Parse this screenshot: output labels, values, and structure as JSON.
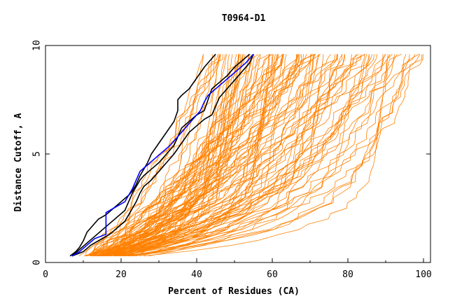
{
  "chart_data": {
    "type": "line",
    "title": "T0964-D1",
    "xlabel": "Percent of Residues (CA)",
    "ylabel": "Distance Cutoff, A",
    "xlim": [
      0,
      100
    ],
    "ylim": [
      0,
      10
    ],
    "x_ticks": [
      "0",
      "20",
      "40",
      "60",
      "80",
      "100"
    ],
    "y_ticks": [
      "0",
      "5",
      "10"
    ],
    "grid": false,
    "legend": "none",
    "colors": {
      "models": "#ff8000",
      "highlight_black": "#000000",
      "highlight_blue": "#0000ff",
      "frame": "#000000"
    },
    "series": [
      {
        "color": "#000000",
        "points": [
          [
            6.5,
            0.3
          ],
          [
            8,
            0.5
          ],
          [
            9,
            0.7
          ],
          [
            10,
            1.0
          ],
          [
            11,
            1.4
          ],
          [
            12,
            1.6
          ],
          [
            14,
            2.0
          ],
          [
            16,
            2.2
          ],
          [
            18,
            2.5
          ],
          [
            20,
            2.8
          ],
          [
            22,
            3.1
          ],
          [
            23,
            3.3
          ],
          [
            24,
            3.6
          ],
          [
            25,
            4.0
          ],
          [
            26,
            4.3
          ],
          [
            27,
            4.6
          ],
          [
            28,
            5.0
          ],
          [
            30,
            5.5
          ],
          [
            32,
            6.0
          ],
          [
            34,
            6.5
          ],
          [
            35,
            7.0
          ],
          [
            35,
            7.5
          ],
          [
            36,
            7.7
          ],
          [
            38,
            8.0
          ],
          [
            40,
            8.5
          ],
          [
            42,
            9.0
          ],
          [
            45,
            9.6
          ]
        ]
      },
      {
        "color": "#000000",
        "points": [
          [
            7,
            0.3
          ],
          [
            9,
            0.6
          ],
          [
            11,
            0.9
          ],
          [
            13,
            1.2
          ],
          [
            15,
            1.5
          ],
          [
            17,
            1.8
          ],
          [
            19,
            2.1
          ],
          [
            21,
            2.4
          ],
          [
            22,
            2.8
          ],
          [
            23,
            3.2
          ],
          [
            24,
            3.5
          ],
          [
            25,
            3.8
          ],
          [
            26,
            4.0
          ],
          [
            28,
            4.3
          ],
          [
            30,
            4.6
          ],
          [
            32,
            5.0
          ],
          [
            34,
            5.4
          ],
          [
            35,
            5.8
          ],
          [
            36,
            6.2
          ],
          [
            38,
            6.5
          ],
          [
            40,
            6.8
          ],
          [
            42,
            7.0
          ],
          [
            43,
            7.5
          ],
          [
            44,
            8.0
          ],
          [
            46,
            8.3
          ],
          [
            48,
            8.6
          ],
          [
            50,
            9.0
          ],
          [
            52,
            9.3
          ],
          [
            54,
            9.6
          ]
        ]
      },
      {
        "color": "#000000",
        "points": [
          [
            7,
            0.3
          ],
          [
            10,
            0.5
          ],
          [
            12,
            0.8
          ],
          [
            14,
            1.0
          ],
          [
            17,
            1.3
          ],
          [
            19,
            1.6
          ],
          [
            21,
            1.9
          ],
          [
            22,
            2.2
          ],
          [
            23,
            2.5
          ],
          [
            24,
            2.8
          ],
          [
            25,
            3.2
          ],
          [
            26,
            3.5
          ],
          [
            28,
            3.8
          ],
          [
            30,
            4.2
          ],
          [
            32,
            4.6
          ],
          [
            34,
            5.0
          ],
          [
            36,
            5.5
          ],
          [
            38,
            6.0
          ],
          [
            40,
            6.3
          ],
          [
            42,
            6.6
          ],
          [
            44,
            6.8
          ],
          [
            45,
            7.2
          ],
          [
            46,
            7.6
          ],
          [
            48,
            8.0
          ],
          [
            50,
            8.4
          ],
          [
            52,
            8.8
          ],
          [
            54,
            9.2
          ],
          [
            55,
            9.6
          ]
        ]
      },
      {
        "color": "#0000ff",
        "points": [
          [
            7,
            0.3
          ],
          [
            9,
            0.5
          ],
          [
            11,
            0.8
          ],
          [
            13,
            1.1
          ],
          [
            16,
            1.3
          ],
          [
            16,
            1.7
          ],
          [
            16,
            2.3
          ],
          [
            18,
            2.5
          ],
          [
            21,
            2.8
          ],
          [
            22,
            3.1
          ],
          [
            23,
            3.4
          ],
          [
            24,
            3.8
          ],
          [
            25,
            4.2
          ],
          [
            27,
            4.5
          ],
          [
            29,
            4.8
          ],
          [
            31,
            5.1
          ],
          [
            33,
            5.4
          ],
          [
            35,
            5.8
          ],
          [
            37,
            6.2
          ],
          [
            39,
            6.6
          ],
          [
            41,
            7.0
          ],
          [
            42,
            7.4
          ],
          [
            43,
            7.7
          ],
          [
            45,
            8.0
          ],
          [
            47,
            8.3
          ],
          [
            49,
            8.6
          ],
          [
            51,
            8.9
          ],
          [
            53,
            9.2
          ],
          [
            55,
            9.6
          ]
        ]
      }
    ]
  }
}
